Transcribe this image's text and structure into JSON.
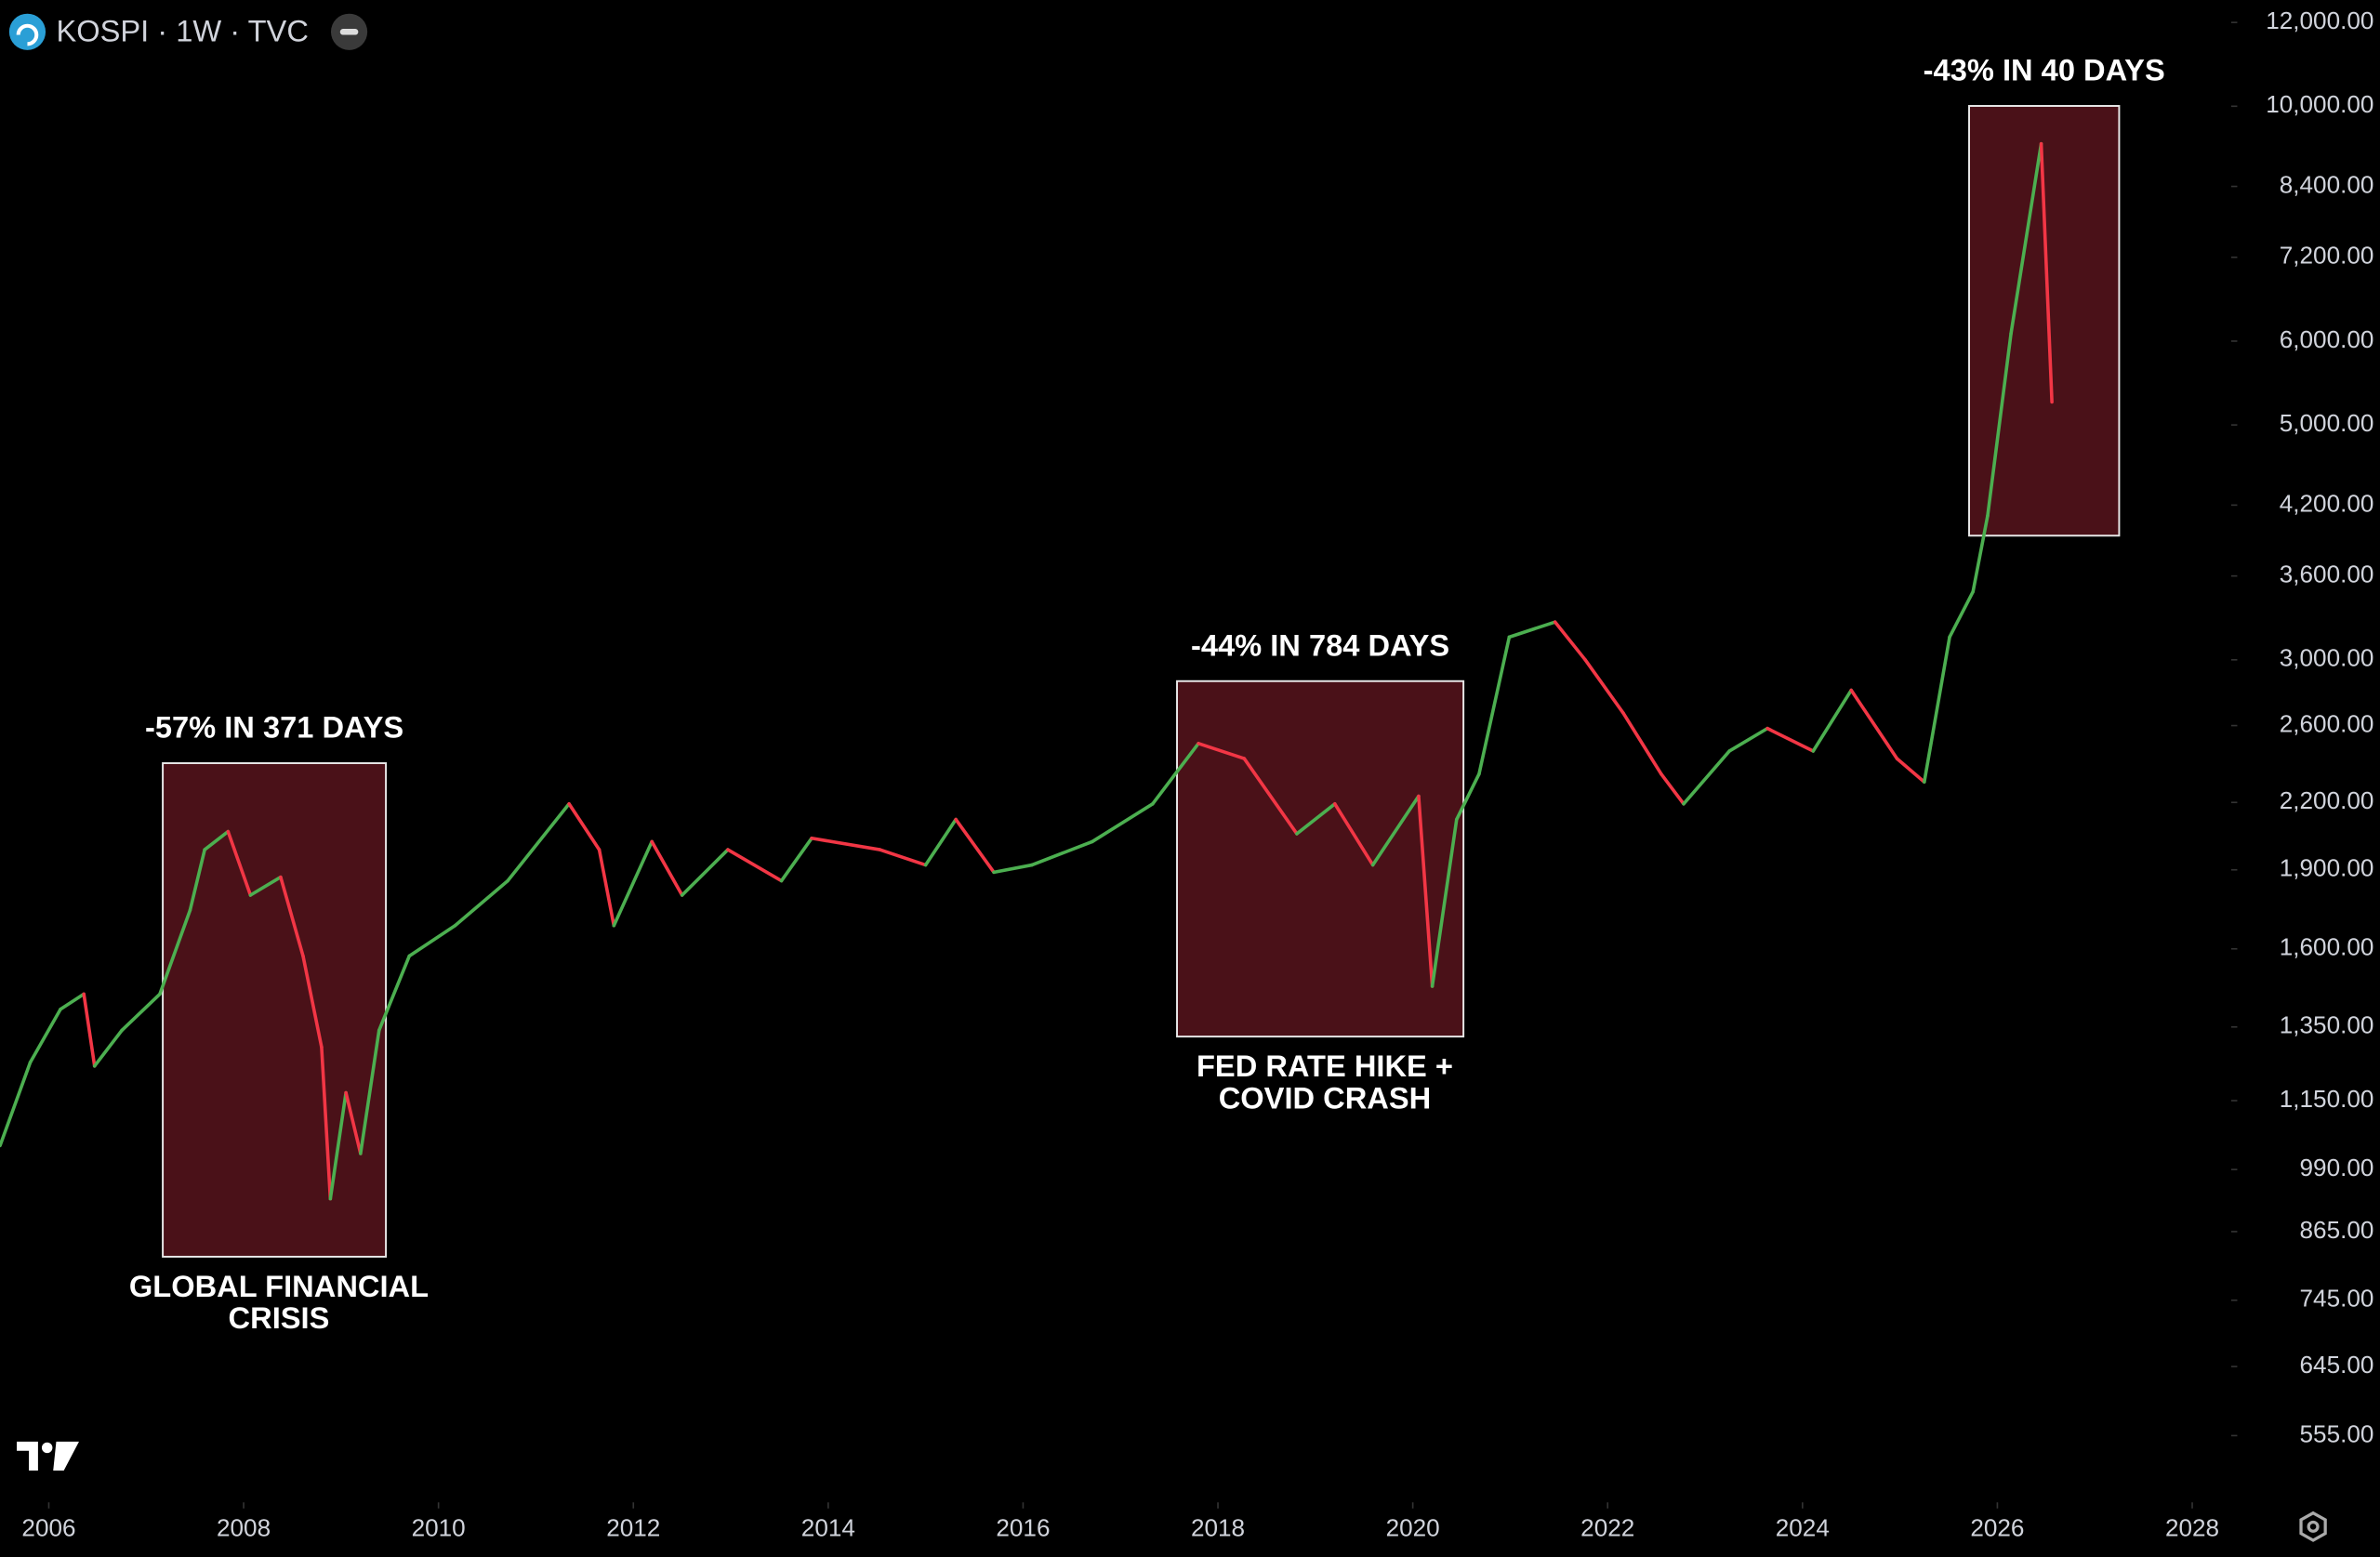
{
  "chart_data": {
    "type": "line",
    "title": "KOSPI · 1W · TVC",
    "log_scale": true,
    "grid": false,
    "up_color": "#4caf50",
    "down_color": "#f23645",
    "xlim": [
      2005.5,
      2028.4
    ],
    "xticks": [
      2006,
      2008,
      2010,
      2012,
      2014,
      2016,
      2018,
      2020,
      2022,
      2024,
      2026,
      2028
    ],
    "ylim": [
      480,
      12600
    ],
    "yticks": [
      {
        "value": 555,
        "label": "555.00"
      },
      {
        "value": 645,
        "label": "645.00"
      },
      {
        "value": 745,
        "label": "745.00"
      },
      {
        "value": 865,
        "label": "865.00"
      },
      {
        "value": 990,
        "label": "990.00"
      },
      {
        "value": 1150,
        "label": "1,150.00"
      },
      {
        "value": 1350,
        "label": "1,350.00"
      },
      {
        "value": 1600,
        "label": "1,600.00"
      },
      {
        "value": 1900,
        "label": "1,900.00"
      },
      {
        "value": 2200,
        "label": "2,200.00"
      },
      {
        "value": 2600,
        "label": "2,600.00"
      },
      {
        "value": 3000,
        "label": "3,000.00"
      },
      {
        "value": 3600,
        "label": "3,600.00"
      },
      {
        "value": 4200,
        "label": "4,200.00"
      },
      {
        "value": 5000,
        "label": "5,000.00"
      },
      {
        "value": 6000,
        "label": "6,000.00"
      },
      {
        "value": 7200,
        "label": "7,200.00"
      },
      {
        "value": 8400,
        "label": "8,400.00"
      },
      {
        "value": 10000,
        "label": "10,000.00"
      },
      {
        "value": 12000,
        "label": "12,000.00"
      }
    ],
    "x": [
      2005.5,
      2005.81,
      2006.12,
      2006.36,
      2006.47,
      2006.75,
      2007.14,
      2007.45,
      2007.6,
      2007.84,
      2008.07,
      2008.38,
      2008.61,
      2008.8,
      2008.89,
      2009.05,
      2009.2,
      2009.39,
      2009.7,
      2010.17,
      2010.71,
      2011.34,
      2011.65,
      2011.8,
      2012.19,
      2012.5,
      2012.97,
      2013.52,
      2013.83,
      2014.53,
      2015.0,
      2015.31,
      2015.7,
      2016.09,
      2016.71,
      2017.33,
      2017.8,
      2018.27,
      2018.81,
      2019.2,
      2019.59,
      2020.06,
      2020.2,
      2020.45,
      2020.68,
      2020.99,
      2021.46,
      2021.77,
      2022.16,
      2022.55,
      2022.78,
      2023.25,
      2023.64,
      2024.11,
      2024.5,
      2024.97,
      2025.25,
      2025.51,
      2025.75,
      2025.9,
      2026.14,
      2026.45,
      2026.56
    ],
    "series": [
      {
        "values": [
          1043,
          1250,
          1403,
          1450,
          1240,
          1340,
          1450,
          1740,
          1985,
          2065,
          1798,
          1870,
          1575,
          1292,
          929,
          1170,
          1025,
          1340,
          1575,
          1683,
          1855,
          2193,
          1985,
          1683,
          2020,
          1798,
          1985,
          1855,
          2035,
          1985,
          1920,
          2120,
          1890,
          1920,
          2020,
          2193,
          2501,
          2420,
          2055,
          2193,
          1920,
          2230,
          1475,
          2120,
          2340,
          3152,
          3257,
          3000,
          2672,
          2340,
          2193,
          2460,
          2584,
          2460,
          2808,
          2420,
          2300,
          3152,
          3479,
          4103,
          6100,
          9216,
          5256
        ]
      }
    ],
    "annotations": [
      {
        "label": "-57% IN 371 DAYS",
        "caption": [
          "GLOBAL FINANCIAL",
          "CRISIS"
        ],
        "xrange": [
          2007.17,
          2009.46
        ],
        "yrange": [
          819,
          2396
        ]
      },
      {
        "label": "-44% IN 784 DAYS",
        "caption": [
          "FED RATE HIKE +",
          "COVID CRASH"
        ],
        "xrange": [
          2017.58,
          2020.52
        ],
        "yrange": [
          1322,
          2864
        ]
      },
      {
        "label": "-43% IN 40 DAYS",
        "xrange": [
          2025.71,
          2027.25
        ],
        "yrange": [
          3930,
          10007
        ]
      }
    ]
  }
}
